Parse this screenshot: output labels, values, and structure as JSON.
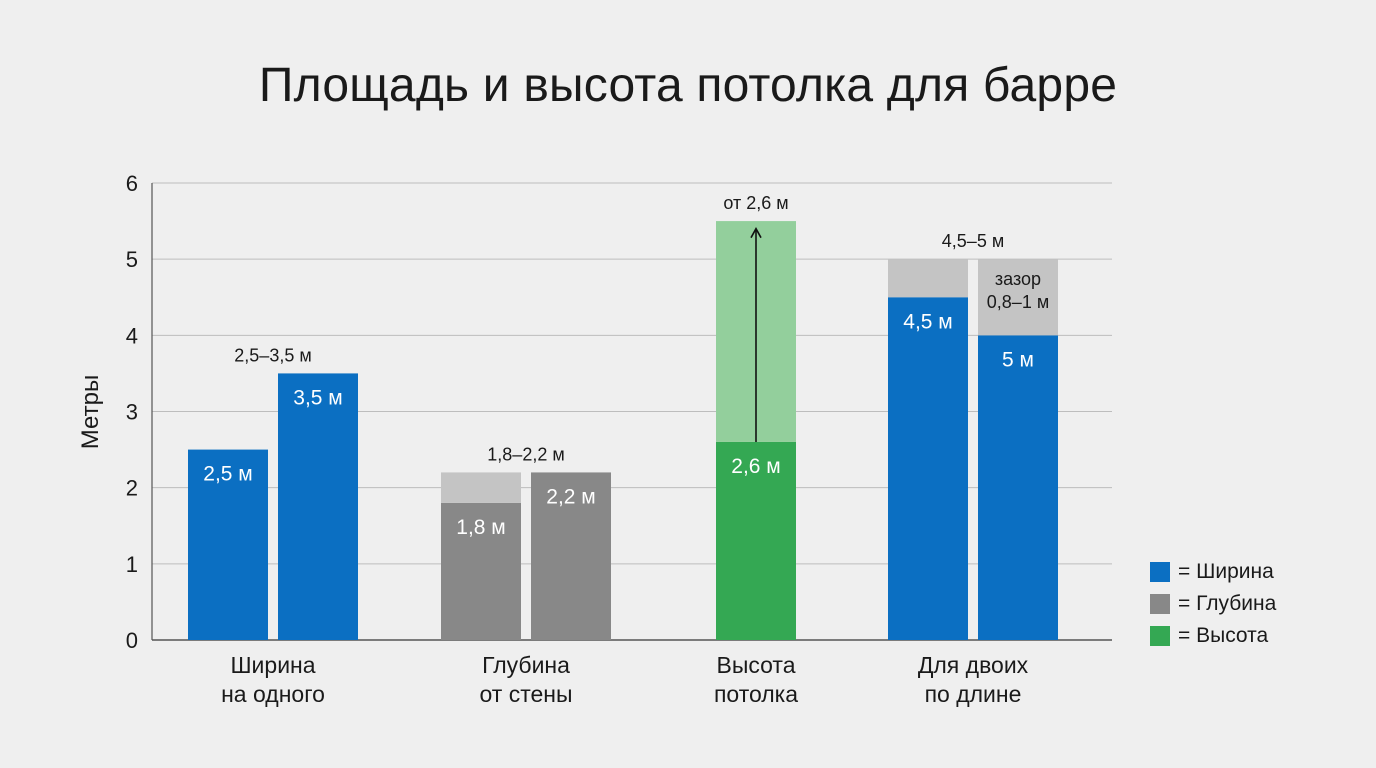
{
  "colors": {
    "blue": "#0b6fc2",
    "gray": "#888888",
    "gray_light": "#c4c4c4",
    "green": "#34a853",
    "green_light": "#93cf9c",
    "grid": "#bdbdbd",
    "axis": "#555555"
  },
  "chart_data": {
    "type": "bar",
    "title": "Площадь и высота потолка для барре",
    "xlabel": "",
    "ylabel": "Метры",
    "ylim": [
      0,
      6
    ],
    "yticks": [
      0,
      1,
      2,
      3,
      4,
      5,
      6
    ],
    "grid": true,
    "legend_position": "bottom-right",
    "categories": [
      {
        "label_lines": [
          "Ширина",
          "на одного"
        ],
        "top_label": "2,5–3,5 м",
        "bars": [
          {
            "series": "Ширина",
            "segments": [
              {
                "from": 0,
                "to": 2.5,
                "tone": "main",
                "label": "2,5 м"
              }
            ]
          },
          {
            "series": "Ширина",
            "segments": [
              {
                "from": 0,
                "to": 3.5,
                "tone": "main",
                "label": "3,5 м"
              }
            ]
          }
        ]
      },
      {
        "label_lines": [
          "Глубина",
          "от стены"
        ],
        "top_label": "1,8–2,2 м",
        "bars": [
          {
            "series": "Глубина",
            "segments": [
              {
                "from": 0,
                "to": 1.8,
                "tone": "main",
                "label": "1,8 м"
              },
              {
                "from": 1.8,
                "to": 2.2,
                "tone": "light",
                "label": ""
              }
            ]
          },
          {
            "series": "Глубина",
            "segments": [
              {
                "from": 0,
                "to": 2.2,
                "tone": "main",
                "label": "2,2 м"
              }
            ]
          }
        ]
      },
      {
        "label_lines": [
          "Высота",
          "потолка"
        ],
        "top_label": "от 2,6 м",
        "arrow": {
          "from": 2.6,
          "to": 5.4
        },
        "bars": [
          {
            "series": "Высота",
            "segments": [
              {
                "from": 0,
                "to": 2.6,
                "tone": "main",
                "label": "2,6 м"
              },
              {
                "from": 2.6,
                "to": 5.5,
                "tone": "light",
                "label": ""
              }
            ]
          }
        ]
      },
      {
        "label_lines": [
          "Для двоих",
          "по длине"
        ],
        "top_label": "4,5–5 м",
        "bars": [
          {
            "series": "Ширина",
            "segments": [
              {
                "from": 0,
                "to": 4.5,
                "tone": "main",
                "label": "4,5 м"
              },
              {
                "from": 4.5,
                "to": 5.0,
                "tone": "gap",
                "label": ""
              }
            ]
          },
          {
            "series": "Ширина",
            "segments": [
              {
                "from": 0,
                "to": 4.0,
                "tone": "main",
                "label": "5 м"
              },
              {
                "from": 4.0,
                "to": 5.0,
                "tone": "gap",
                "label_lines": [
                  "зазор",
                  "0,8–1 м"
                ]
              }
            ]
          }
        ]
      }
    ],
    "legend": [
      {
        "label": "= Ширина",
        "color": "#0b6fc2"
      },
      {
        "label": "= Глубина",
        "color": "#888888"
      },
      {
        "label": "= Высота",
        "color": "#34a853"
      }
    ]
  }
}
